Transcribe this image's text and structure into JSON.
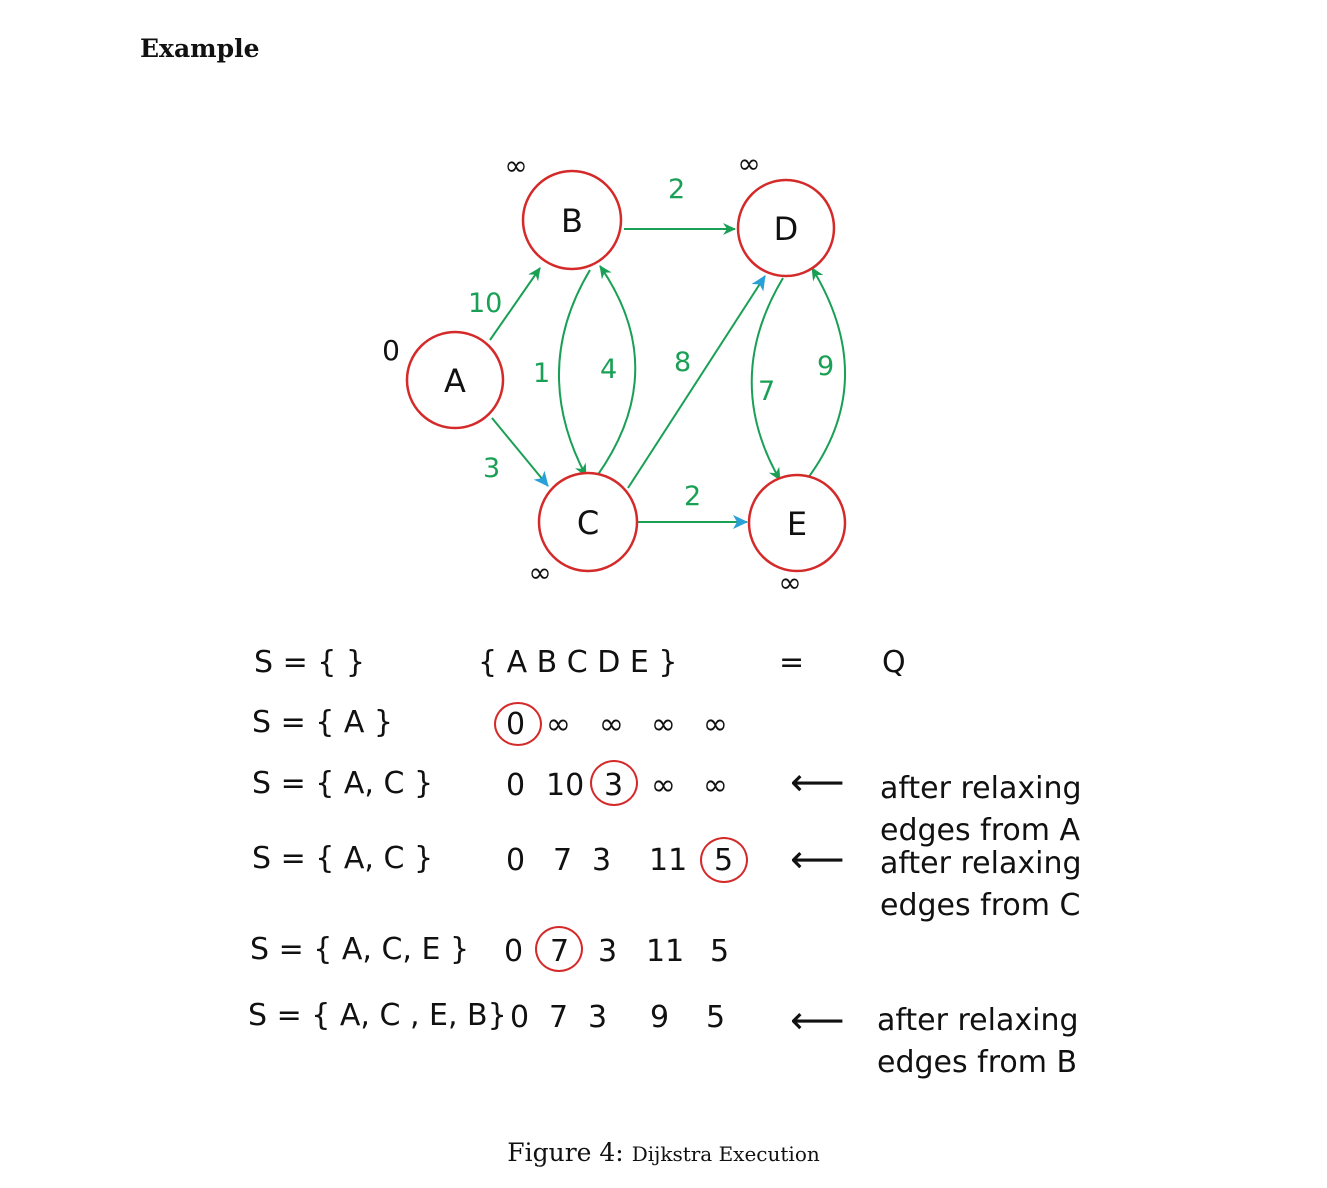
{
  "heading": "Example",
  "graph": {
    "nodes": [
      {
        "id": "A",
        "label": "A",
        "dist": "0"
      },
      {
        "id": "B",
        "label": "B",
        "dist": "∞"
      },
      {
        "id": "C",
        "label": "C",
        "dist": "∞"
      },
      {
        "id": "D",
        "label": "D",
        "dist": "∞"
      },
      {
        "id": "E",
        "label": "E",
        "dist": "∞"
      }
    ],
    "edges": [
      {
        "from": "A",
        "to": "B",
        "weight": "10"
      },
      {
        "from": "A",
        "to": "C",
        "weight": "3"
      },
      {
        "from": "B",
        "to": "C",
        "weight": "1"
      },
      {
        "from": "C",
        "to": "B",
        "weight": "4"
      },
      {
        "from": "B",
        "to": "D",
        "weight": "2"
      },
      {
        "from": "C",
        "to": "D",
        "weight": "8"
      },
      {
        "from": "C",
        "to": "E",
        "weight": "2"
      },
      {
        "from": "D",
        "to": "E",
        "weight": "7"
      },
      {
        "from": "E",
        "to": "D",
        "weight": "9"
      }
    ],
    "colors": {
      "node_border": "#d42a2a",
      "edge": "#1aa055",
      "arrow_tip": "#2aa0d8"
    }
  },
  "table": {
    "header": {
      "s": "S = {  }",
      "q_set": "{ A  B  C   D  E }",
      "eq": "=",
      "q": "Q"
    },
    "rows": [
      {
        "s": "S = { A }",
        "vals": [
          "0",
          "∞",
          "∞",
          "∞",
          "∞"
        ],
        "note": ""
      },
      {
        "s": "S = { A, C }",
        "vals": [
          "0",
          "10",
          "3",
          "∞",
          "∞"
        ],
        "note": "after relaxing\nedges from A"
      },
      {
        "s": "S = { A, C }",
        "vals": [
          "0",
          "7",
          "3",
          "11",
          "5"
        ],
        "note": "after relaxing\nedges from C"
      },
      {
        "s": "S = { A, C, E }",
        "vals": [
          "0",
          "7",
          "3",
          "11",
          "5"
        ],
        "note": ""
      },
      {
        "s": "S = { A, C , E, B}",
        "vals": [
          "0",
          "7",
          "3",
          "9",
          "5"
        ],
        "note": "after relaxing\nedges from B"
      }
    ]
  },
  "caption": {
    "label": "Figure 4:",
    "text": "Dijkstra Execution"
  }
}
